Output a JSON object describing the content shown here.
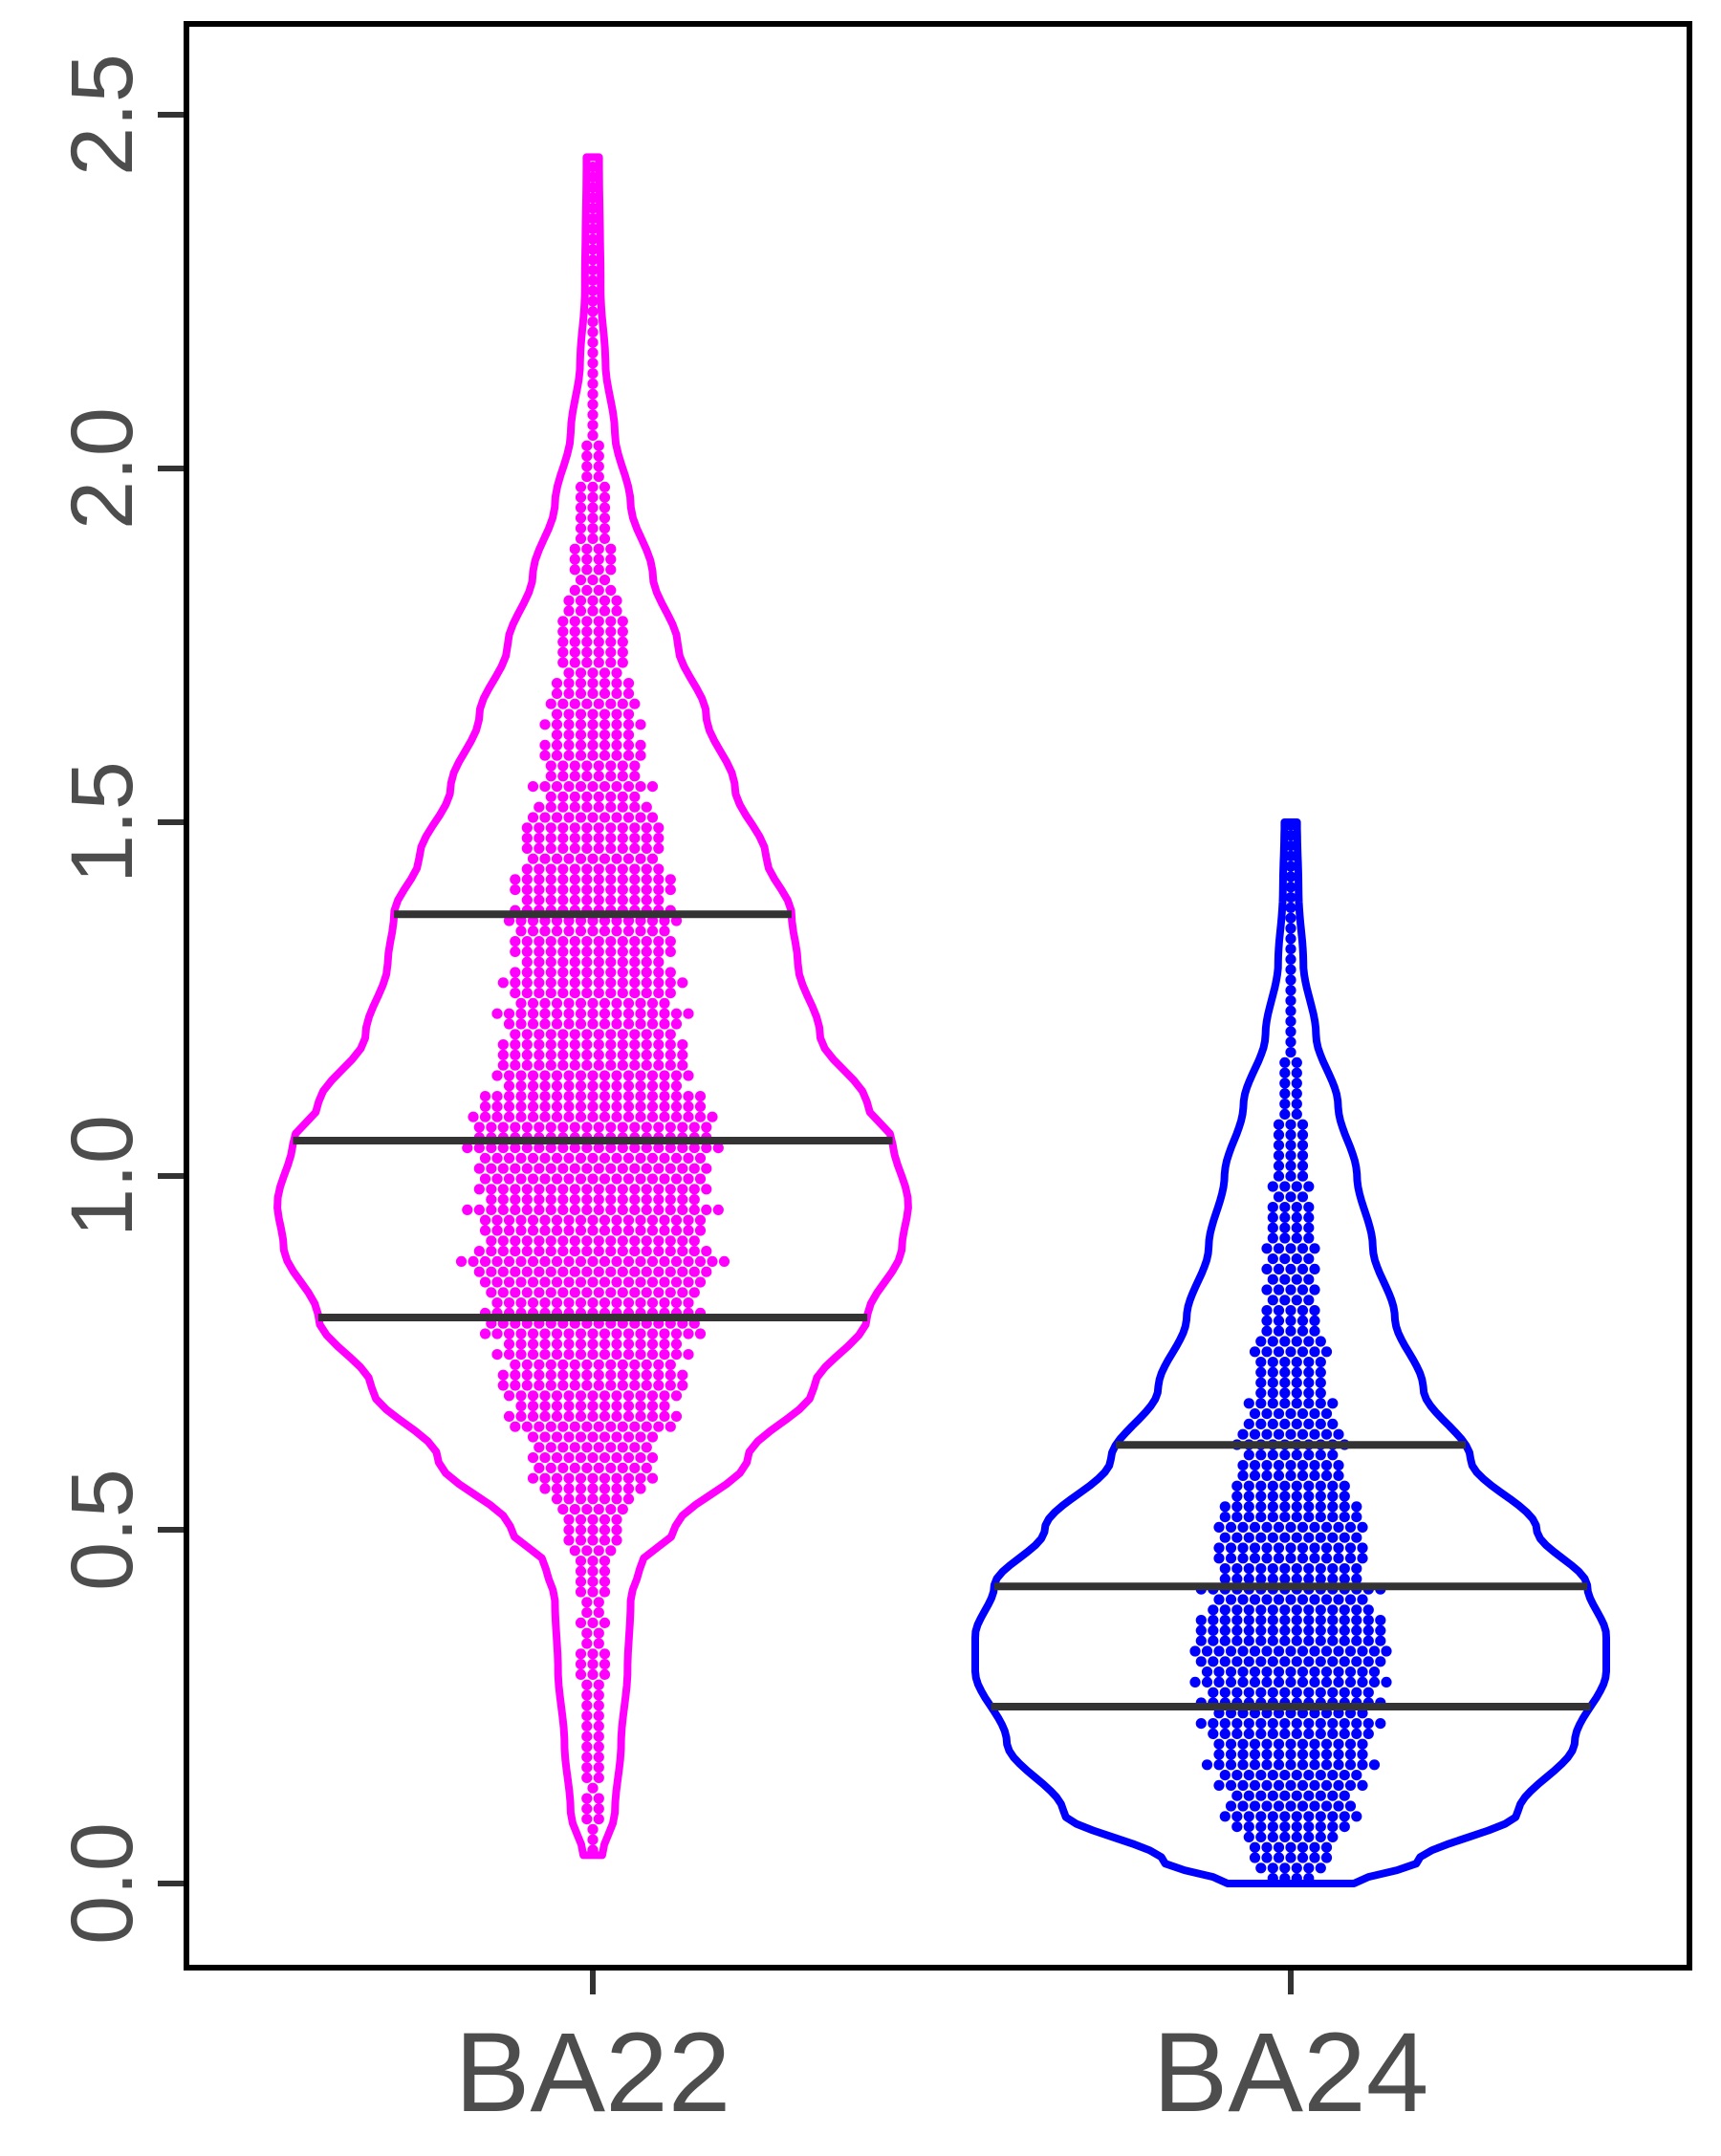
{
  "chart_data": {
    "type": "violin",
    "title": "",
    "xlabel": "",
    "ylabel": "",
    "ylim": [
      -0.12,
      2.62
    ],
    "yticks": [
      "0.0",
      "0.5",
      "1.0",
      "1.5",
      "2.0",
      "2.5"
    ],
    "ytick_values": [
      0.0,
      0.5,
      1.0,
      1.5,
      2.0,
      2.5
    ],
    "categories": [
      "BA22",
      "BA24"
    ],
    "grid": false,
    "legend": "none",
    "series": [
      {
        "name": "BA22",
        "color": "#ff00ff",
        "min": 0.04,
        "max": 2.44,
        "quartiles": [
          0.8,
          1.05,
          1.37
        ],
        "density_profile": [
          {
            "y": 0.04,
            "w": 0.03
          },
          {
            "y": 0.1,
            "w": 0.07
          },
          {
            "y": 0.2,
            "w": 0.09
          },
          {
            "y": 0.3,
            "w": 0.11
          },
          {
            "y": 0.4,
            "w": 0.12
          },
          {
            "y": 0.45,
            "w": 0.15
          },
          {
            "y": 0.5,
            "w": 0.26
          },
          {
            "y": 0.6,
            "w": 0.49
          },
          {
            "y": 0.7,
            "w": 0.7
          },
          {
            "y": 0.8,
            "w": 0.87
          },
          {
            "y": 0.9,
            "w": 0.98
          },
          {
            "y": 0.96,
            "w": 1.0
          },
          {
            "y": 1.05,
            "w": 0.95
          },
          {
            "y": 1.1,
            "w": 0.87
          },
          {
            "y": 1.2,
            "w": 0.72
          },
          {
            "y": 1.3,
            "w": 0.65
          },
          {
            "y": 1.37,
            "w": 0.63
          },
          {
            "y": 1.45,
            "w": 0.55
          },
          {
            "y": 1.55,
            "w": 0.45
          },
          {
            "y": 1.65,
            "w": 0.36
          },
          {
            "y": 1.75,
            "w": 0.27
          },
          {
            "y": 1.85,
            "w": 0.19
          },
          {
            "y": 1.95,
            "w": 0.12
          },
          {
            "y": 2.05,
            "w": 0.07
          },
          {
            "y": 2.15,
            "w": 0.04
          },
          {
            "y": 2.25,
            "w": 0.025
          },
          {
            "y": 2.44,
            "w": 0.02
          }
        ],
        "point_count": 1350
      },
      {
        "name": "BA24",
        "color": "#0000ff",
        "min": 0.0,
        "max": 1.5,
        "quartiles": [
          0.25,
          0.42,
          0.62
        ],
        "density_profile": [
          {
            "y": 0.0,
            "w": 0.2
          },
          {
            "y": 0.03,
            "w": 0.4
          },
          {
            "y": 0.1,
            "w": 0.72
          },
          {
            "y": 0.2,
            "w": 0.9
          },
          {
            "y": 0.3,
            "w": 1.0
          },
          {
            "y": 0.35,
            "w": 1.0
          },
          {
            "y": 0.42,
            "w": 0.94
          },
          {
            "y": 0.5,
            "w": 0.78
          },
          {
            "y": 0.6,
            "w": 0.57
          },
          {
            "y": 0.7,
            "w": 0.42
          },
          {
            "y": 0.8,
            "w": 0.33
          },
          {
            "y": 0.9,
            "w": 0.26
          },
          {
            "y": 1.0,
            "w": 0.21
          },
          {
            "y": 1.1,
            "w": 0.15
          },
          {
            "y": 1.2,
            "w": 0.08
          },
          {
            "y": 1.3,
            "w": 0.04
          },
          {
            "y": 1.4,
            "w": 0.025
          },
          {
            "y": 1.5,
            "w": 0.02
          }
        ],
        "point_count": 700
      }
    ]
  }
}
